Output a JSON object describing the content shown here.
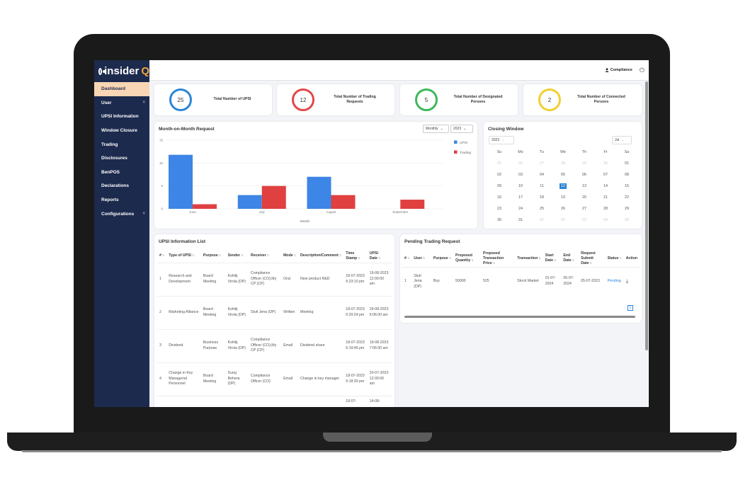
{
  "brand": {
    "name": "insider",
    "accent": "Q"
  },
  "sidebar": {
    "items": [
      {
        "label": "Dashboard",
        "active": true,
        "chevron": false
      },
      {
        "label": "User",
        "chevron": true
      },
      {
        "label": "UPSI Information",
        "chevron": false
      },
      {
        "label": "Window Closure",
        "chevron": false
      },
      {
        "label": "Trading",
        "chevron": false
      },
      {
        "label": "Disclosures",
        "chevron": false
      },
      {
        "label": "BenPOS",
        "chevron": false
      },
      {
        "label": "Declarations",
        "chevron": false
      },
      {
        "label": "Reports",
        "chevron": false
      },
      {
        "label": "Configurations",
        "chevron": true
      }
    ]
  },
  "topbar": {
    "user": "Compliance",
    "user_icon": "user-icon",
    "power_icon": "power-icon"
  },
  "stats": [
    {
      "value": "25",
      "label": "Total Number of UPSI",
      "color": "#2a86d8"
    },
    {
      "value": "12",
      "label": "Total Number of Trading Requests",
      "color": "#e04848"
    },
    {
      "value": "5",
      "label": "Total Number of Designated Persons",
      "color": "#3cb85a"
    },
    {
      "value": "2",
      "label": "Total Number of Connected Persons",
      "color": "#f2cf33"
    }
  ],
  "chart": {
    "title": "Month-on-Month Request",
    "period_select": "Monthly",
    "year_select": "2023"
  },
  "chart_data": {
    "type": "bar",
    "categories": [
      "June",
      "July",
      "August",
      "September"
    ],
    "series": [
      {
        "name": "UPSI",
        "color": "#3d85e6",
        "values": [
          11.8,
          3,
          7,
          0
        ]
      },
      {
        "name": "Trading",
        "color": "#e04040",
        "values": [
          1,
          5,
          3,
          2
        ]
      }
    ],
    "xlabel": "Month",
    "ylim": [
      0,
      15
    ],
    "yticks": [
      "0",
      "5",
      "10",
      "15"
    ],
    "grid": true,
    "legend": "top-right"
  },
  "closing_window": {
    "title": "Closing Window",
    "year": "2023",
    "month": "Jul",
    "weekdays": [
      "Su",
      "Mo",
      "Tu",
      "We",
      "Th",
      "Fr",
      "Sa"
    ],
    "days": [
      "25",
      "26",
      "27",
      "28",
      "29",
      "30",
      "01",
      "02",
      "03",
      "04",
      "05",
      "06",
      "07",
      "08",
      "09",
      "10",
      "11",
      "12",
      "13",
      "14",
      "15",
      "16",
      "17",
      "18",
      "19",
      "20",
      "21",
      "22",
      "23",
      "24",
      "25",
      "26",
      "27",
      "28",
      "29",
      "30",
      "31",
      "01",
      "02",
      "03",
      "04",
      "05"
    ],
    "muted": [
      0,
      1,
      2,
      3,
      4,
      5,
      37,
      38,
      39,
      40,
      41
    ],
    "today": 17
  },
  "upsi_list": {
    "title": "UPSI Information List",
    "headers": [
      "#",
      "Type of UPSI",
      "Purpose",
      "Sender",
      "Receiver",
      "Mode",
      "Description/Comment",
      "Time Stamp",
      "UPSI Date"
    ],
    "rows": [
      [
        "1",
        "Research and Development",
        "Board Meeting",
        "Kshitij Virola (DP)",
        "Compliance Officer (CO),My CP (CP)",
        "Oral",
        "New product R&D",
        "18-07-2023 5:23:10 pm",
        "19-08-2023 12:00:00 am"
      ],
      [
        "2",
        "Marketing Alliance",
        "Board Meeting",
        "Kshitij Virola (DP)",
        "Stuti Jena (DP)",
        "Written",
        "Meeting",
        "18-07-2023 5:20:24 pm",
        "29-08-2023 6:06:00 am"
      ],
      [
        "3",
        "Dividend",
        "Business Purpose",
        "Kshitij Virola (DP)",
        "Compliance Officer (CO),My CP (CP)",
        "Email",
        "Dividend share",
        "18-07-2023 5:19:46 pm",
        "19-08-2023 7:06:00 am"
      ],
      [
        "4",
        "Change in Key Managerial Personnel",
        "Board Meeting",
        "Suraj Behera (DP)",
        "Compliance Officer (CO)",
        "Email",
        "Change in key manager",
        "18-07-2023 5:18:30 pm",
        "20-07-2023 12:00:00 am"
      ],
      [
        "",
        "",
        "",
        "",
        "",
        "",
        "",
        "18-07-",
        "14-08-"
      ]
    ]
  },
  "pending": {
    "title": "Pending Trading Request",
    "headers": [
      "#",
      "User",
      "Purpose",
      "Proposed Quantity",
      "Proposed Transaction Price",
      "Transaction",
      "Start Date",
      "End Date",
      "Request Submit Date",
      "Status",
      "Action"
    ],
    "rows": [
      [
        "1",
        "Stuti Jena (DP)",
        "Buy",
        "50000",
        "525",
        "Stock Market",
        "01-07-2024",
        "05-07-2024",
        "05-07-2023",
        "Pending",
        "download-icon"
      ]
    ],
    "page": "1"
  }
}
